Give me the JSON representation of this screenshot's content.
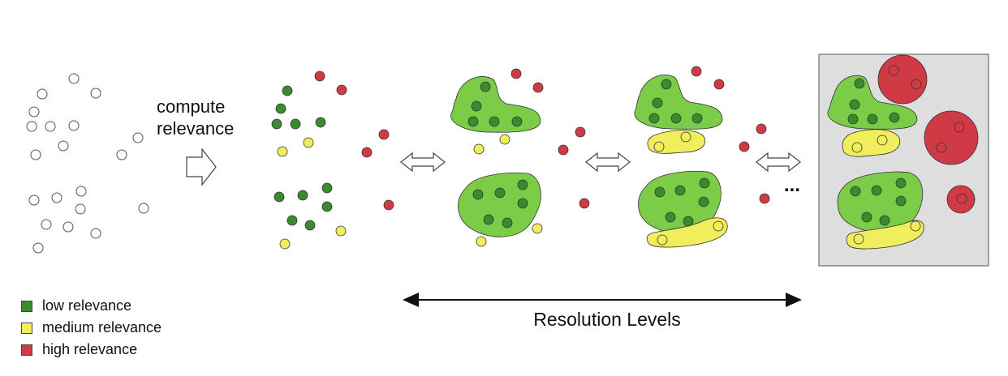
{
  "step_label_line1": "compute",
  "step_label_line2": "relevance",
  "axis_label": "Resolution Levels",
  "ellipsis": "...",
  "colors": {
    "low": "#3a8a2e",
    "low_region": "#7ccc48",
    "medium": "#f0ee5c",
    "high": "#d03a45",
    "frame_bg": "#dedede"
  },
  "legend": [
    {
      "key": "low",
      "label": "low relevance",
      "color": "#3a8a2e"
    },
    {
      "key": "medium",
      "label": "medium relevance",
      "color": "#f0ee5c"
    },
    {
      "key": "high",
      "label": "high relevance",
      "color": "#d03a45"
    }
  ]
}
